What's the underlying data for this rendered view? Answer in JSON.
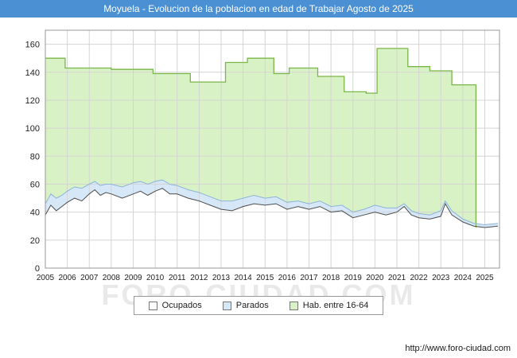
{
  "title_bar": {
    "text": "Moyuela - Evolucion de la poblacion en edad de Trabajar Agosto de 2025",
    "bg": "#4a90d2"
  },
  "watermark": "FORO-CIUDAD.COM",
  "footer": {
    "url": "http://www.foro-ciudad.com"
  },
  "legend": [
    {
      "label": "Ocupados",
      "swatch": "#ffffff"
    },
    {
      "label": "Parados",
      "swatch": "#d6e8f7"
    },
    {
      "label": "Hab. entre 16-64",
      "swatch": "#d9f2c5"
    }
  ],
  "chart_data": {
    "type": "area",
    "title": "Moyuela - Evolucion de la poblacion en edad de Trabajar Agosto de 2025",
    "xlabel": "",
    "ylabel": "",
    "grid": true,
    "legend_position": "bottom",
    "ylim": [
      0,
      170
    ],
    "yticks": [
      0,
      20,
      40,
      60,
      80,
      100,
      120,
      140,
      160
    ],
    "xticks": [
      2005,
      2006,
      2007,
      2008,
      2009,
      2010,
      2011,
      2012,
      2013,
      2014,
      2015,
      2016,
      2017,
      2018,
      2019,
      2020,
      2021,
      2022,
      2023,
      2024,
      2025
    ],
    "x_range": [
      2005,
      2025.67
    ],
    "series": [
      {
        "name": "Hab. entre 16-64",
        "render": "step-area",
        "fill": "#d9f2c5",
        "stroke": "#7ab648",
        "steps": [
          {
            "from": 2005.0,
            "to": 2005.9,
            "value": 150
          },
          {
            "from": 2005.9,
            "to": 2008.0,
            "value": 143
          },
          {
            "from": 2008.0,
            "to": 2009.9,
            "value": 142
          },
          {
            "from": 2009.9,
            "to": 2011.6,
            "value": 139
          },
          {
            "from": 2011.6,
            "to": 2013.2,
            "value": 133
          },
          {
            "from": 2013.2,
            "to": 2014.2,
            "value": 147
          },
          {
            "from": 2014.2,
            "to": 2015.4,
            "value": 150
          },
          {
            "from": 2015.4,
            "to": 2016.1,
            "value": 139
          },
          {
            "from": 2016.1,
            "to": 2017.4,
            "value": 143
          },
          {
            "from": 2017.4,
            "to": 2018.6,
            "value": 137
          },
          {
            "from": 2018.6,
            "to": 2019.6,
            "value": 126
          },
          {
            "from": 2019.6,
            "to": 2020.1,
            "value": 125
          },
          {
            "from": 2020.1,
            "to": 2021.5,
            "value": 157
          },
          {
            "from": 2021.5,
            "to": 2022.5,
            "value": 144
          },
          {
            "from": 2022.5,
            "to": 2023.5,
            "value": 141
          },
          {
            "from": 2023.5,
            "to": 2024.6,
            "value": 131
          }
        ]
      },
      {
        "name": "Ocupados",
        "render": "area",
        "fill": "#ffffff",
        "stroke": "#4d4d4d",
        "x": [
          2005,
          2005.25,
          2005.5,
          2005.75,
          2006,
          2006.33,
          2006.66,
          2007,
          2007.25,
          2007.5,
          2007.75,
          2008,
          2008.5,
          2009,
          2009.33,
          2009.66,
          2010,
          2010.33,
          2010.66,
          2011,
          2011.5,
          2012,
          2012.5,
          2013,
          2013.5,
          2014,
          2014.5,
          2015,
          2015.5,
          2016,
          2016.5,
          2017,
          2017.5,
          2018,
          2018.5,
          2019,
          2019.5,
          2020,
          2020.5,
          2021,
          2021.33,
          2021.66,
          2022,
          2022.5,
          2023,
          2023.2,
          2023.5,
          2024,
          2024.5,
          2025,
          2025.6
        ],
        "values": [
          38,
          45,
          41,
          44,
          47,
          50,
          48,
          53,
          56,
          52,
          54,
          53,
          50,
          53,
          55,
          52,
          55,
          57,
          53,
          53,
          50,
          48,
          45,
          42,
          41,
          44,
          46,
          45,
          46,
          42,
          44,
          42,
          44,
          40,
          41,
          36,
          38,
          40,
          38,
          40,
          44,
          38,
          36,
          35,
          37,
          46,
          38,
          33,
          30,
          29,
          30
        ]
      },
      {
        "name": "Parados",
        "render": "band",
        "stacked_on": "Ocupados",
        "fill": "#d6e8f7",
        "stroke": "#8cb4d9",
        "values": [
          8,
          8,
          9,
          8,
          8,
          8,
          9,
          7,
          6,
          7,
          6,
          7,
          8,
          8,
          7,
          8,
          7,
          6,
          7,
          6,
          6,
          6,
          6,
          6,
          7,
          6,
          6,
          5,
          5,
          5,
          4,
          4,
          4,
          4,
          4,
          4,
          4,
          5,
          5,
          3,
          2,
          3,
          3,
          3,
          4,
          2,
          3,
          2,
          2,
          2,
          2
        ]
      }
    ]
  }
}
